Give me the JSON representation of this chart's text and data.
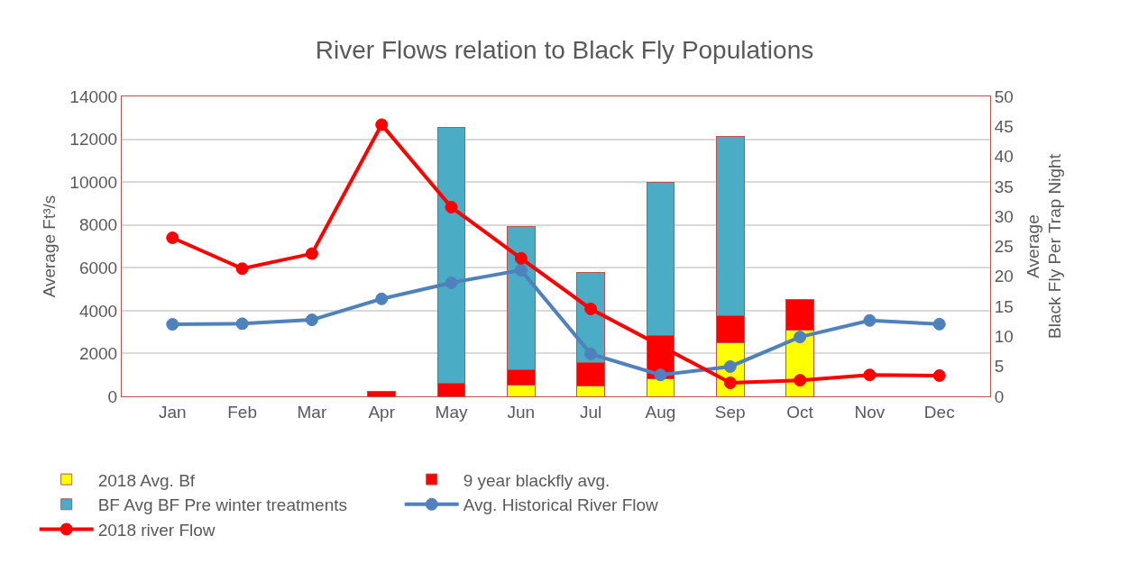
{
  "chart_data": {
    "type": "bar",
    "title": "River Flows relation to Black Fly Populations",
    "categories": [
      "Jan",
      "Feb",
      "Mar",
      "Apr",
      "May",
      "Jun",
      "Jul",
      "Aug",
      "Sep",
      "Oct",
      "Nov",
      "Dec"
    ],
    "stacked": true,
    "series": [
      {
        "name": "2018 Avg. Bf",
        "axis": "y2",
        "color": "#ffff00",
        "values": [
          null,
          null,
          null,
          0,
          0,
          1.9,
          1.8,
          3.0,
          8.9,
          11.0,
          null,
          null
        ]
      },
      {
        "name": "9 year blackfly avg.",
        "axis": "y2",
        "color": "#ff0000",
        "values": [
          null,
          null,
          null,
          0.9,
          2.2,
          2.5,
          3.9,
          7.2,
          4.6,
          5.1,
          null,
          null
        ]
      },
      {
        "name": "BF Avg BF Pre winter treatments",
        "axis": "y2",
        "color": "#4bacc6",
        "values": [
          null,
          null,
          null,
          null,
          42.6,
          23.9,
          14.9,
          25.5,
          29.8,
          null,
          null,
          null
        ]
      },
      {
        "name": "Avg. Historical River Flow",
        "type": "line",
        "axis": "y",
        "color": "#4f81bd",
        "values": [
          3360,
          3390,
          3570,
          4550,
          5300,
          5890,
          1980,
          1000,
          1390,
          2770,
          3540,
          3370
        ]
      },
      {
        "name": "2018 river Flow",
        "type": "line",
        "axis": "y",
        "color": "#ff0000",
        "values": [
          7400,
          5960,
          6660,
          12680,
          8830,
          6440,
          4080,
          2360,
          630,
          750,
          1000,
          970
        ]
      }
    ],
    "ylabel": "Average Ft³/s",
    "y2label": "Average\nBlack Fly Per Trap Night",
    "ylim": [
      0,
      14000
    ],
    "yticks": [
      0,
      2000,
      4000,
      6000,
      8000,
      10000,
      12000,
      14000
    ],
    "y2lim": [
      0,
      50
    ],
    "y2ticks": [
      0,
      5,
      10,
      15,
      20,
      25,
      30,
      35,
      40,
      45,
      50
    ],
    "grid": "y",
    "legend": "bottom",
    "marker": "circle",
    "line_style": "solid"
  }
}
